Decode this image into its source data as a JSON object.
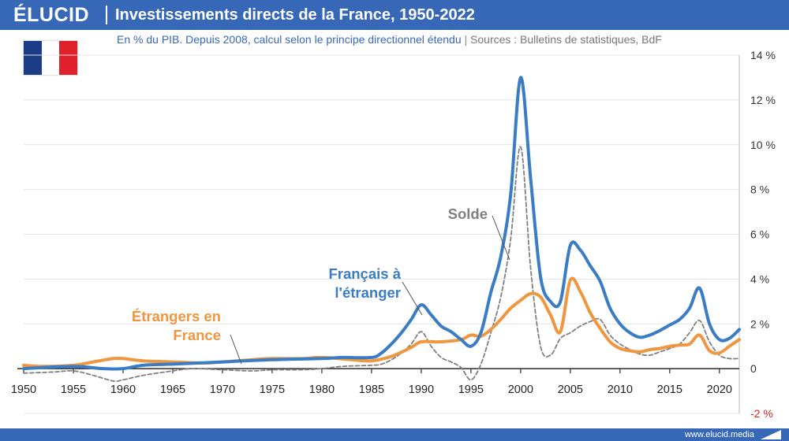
{
  "header": {
    "logo": "ÉLUCID",
    "title": "Investissements directs de la France, 1950-2022"
  },
  "subtitle": {
    "main": "En % du PIB. Depuis 2008, calcul selon le principe directionnel étendu",
    "separator": "|",
    "sources": "Sources : Bulletins de statistiques, BdF"
  },
  "flag": {
    "colors": [
      "#1d3c87",
      "#ffffff",
      "#e0202b"
    ]
  },
  "footer": {
    "text": "www.elucid.media"
  },
  "colors": {
    "brand": "#3768b7",
    "blue": "#3b7dc4",
    "orange": "#ee9640",
    "grey": "#808080",
    "negative": "#e02020"
  },
  "chart_data": {
    "type": "line",
    "title": "Investissements directs de la France, 1950-2022",
    "xlim": [
      1950,
      2022
    ],
    "ylim": [
      -2,
      14
    ],
    "x_ticks": [
      1950,
      1955,
      1960,
      1965,
      1970,
      1975,
      1980,
      1985,
      1990,
      1995,
      2000,
      2005,
      2010,
      2015,
      2020
    ],
    "y_ticks": [
      {
        "value": 14,
        "label": "14 %"
      },
      {
        "value": 12,
        "label": "12 %"
      },
      {
        "value": 10,
        "label": "10 %"
      },
      {
        "value": 8,
        "label": "8 %"
      },
      {
        "value": 6,
        "label": "6 %"
      },
      {
        "value": 4,
        "label": "4 %"
      },
      {
        "value": 2,
        "label": "2 %"
      },
      {
        "value": 0,
        "label": "0"
      },
      {
        "value": -2,
        "label": "-2 %"
      }
    ],
    "y_axis_side": "right",
    "grid": true,
    "series": [
      {
        "name": "Français à l'étranger",
        "style": "solid",
        "label_lines": [
          "Français à",
          "l'étranger"
        ],
        "points": [
          [
            1950,
            0.0
          ],
          [
            1955,
            0.1
          ],
          [
            1958,
            0.0
          ],
          [
            1960,
            0.0
          ],
          [
            1962,
            0.15
          ],
          [
            1965,
            0.2
          ],
          [
            1970,
            0.3
          ],
          [
            1975,
            0.4
          ],
          [
            1980,
            0.45
          ],
          [
            1982,
            0.5
          ],
          [
            1985,
            0.5
          ],
          [
            1986,
            0.7
          ],
          [
            1987,
            1.1
          ],
          [
            1988,
            1.6
          ],
          [
            1989,
            2.2
          ],
          [
            1990,
            2.85
          ],
          [
            1991,
            2.4
          ],
          [
            1992,
            1.9
          ],
          [
            1993,
            1.65
          ],
          [
            1994,
            1.3
          ],
          [
            1995,
            1.0
          ],
          [
            1996,
            1.6
          ],
          [
            1997,
            3.4
          ],
          [
            1998,
            5.0
          ],
          [
            1999,
            7.8
          ],
          [
            2000,
            13.0
          ],
          [
            2001,
            8.5
          ],
          [
            2002,
            4.1
          ],
          [
            2003,
            3.0
          ],
          [
            2004,
            3.0
          ],
          [
            2005,
            5.5
          ],
          [
            2006,
            5.3
          ],
          [
            2007,
            4.6
          ],
          [
            2008,
            3.9
          ],
          [
            2009,
            2.7
          ],
          [
            2010,
            2.0
          ],
          [
            2011,
            1.6
          ],
          [
            2012,
            1.4
          ],
          [
            2013,
            1.5
          ],
          [
            2014,
            1.7
          ],
          [
            2015,
            1.95
          ],
          [
            2016,
            2.2
          ],
          [
            2017,
            2.7
          ],
          [
            2018,
            3.6
          ],
          [
            2019,
            2.0
          ],
          [
            2020,
            1.3
          ],
          [
            2021,
            1.35
          ],
          [
            2022,
            1.75
          ]
        ]
      },
      {
        "name": "Étrangers en France",
        "style": "solid",
        "label_lines": [
          "Étrangers en",
          "France"
        ],
        "points": [
          [
            1950,
            0.15
          ],
          [
            1952,
            0.1
          ],
          [
            1955,
            0.15
          ],
          [
            1957,
            0.3
          ],
          [
            1959,
            0.45
          ],
          [
            1960,
            0.45
          ],
          [
            1962,
            0.35
          ],
          [
            1965,
            0.3
          ],
          [
            1968,
            0.25
          ],
          [
            1970,
            0.3
          ],
          [
            1973,
            0.4
          ],
          [
            1975,
            0.45
          ],
          [
            1978,
            0.45
          ],
          [
            1980,
            0.5
          ],
          [
            1983,
            0.4
          ],
          [
            1985,
            0.35
          ],
          [
            1987,
            0.55
          ],
          [
            1989,
            0.95
          ],
          [
            1990,
            1.2
          ],
          [
            1992,
            1.2
          ],
          [
            1994,
            1.3
          ],
          [
            1995,
            1.5
          ],
          [
            1996,
            1.45
          ],
          [
            1997,
            1.75
          ],
          [
            1998,
            2.2
          ],
          [
            1999,
            2.7
          ],
          [
            2000,
            3.05
          ],
          [
            2001,
            3.35
          ],
          [
            2002,
            3.2
          ],
          [
            2003,
            2.4
          ],
          [
            2004,
            1.65
          ],
          [
            2005,
            3.95
          ],
          [
            2006,
            3.45
          ],
          [
            2007,
            2.5
          ],
          [
            2008,
            1.8
          ],
          [
            2009,
            1.2
          ],
          [
            2010,
            0.9
          ],
          [
            2011,
            0.8
          ],
          [
            2012,
            0.75
          ],
          [
            2013,
            0.85
          ],
          [
            2014,
            0.9
          ],
          [
            2015,
            1.0
          ],
          [
            2016,
            1.05
          ],
          [
            2017,
            1.1
          ],
          [
            2018,
            1.5
          ],
          [
            2019,
            0.8
          ],
          [
            2020,
            0.7
          ],
          [
            2021,
            1.0
          ],
          [
            2022,
            1.3
          ]
        ]
      },
      {
        "name": "Solde",
        "style": "dashed",
        "label_lines": [
          "Solde"
        ],
        "points": [
          [
            1950,
            -0.2
          ],
          [
            1953,
            -0.15
          ],
          [
            1955,
            -0.1
          ],
          [
            1957,
            -0.3
          ],
          [
            1959,
            -0.55
          ],
          [
            1960,
            -0.5
          ],
          [
            1962,
            -0.3
          ],
          [
            1965,
            -0.1
          ],
          [
            1967,
            0.0
          ],
          [
            1970,
            -0.05
          ],
          [
            1973,
            -0.1
          ],
          [
            1975,
            -0.05
          ],
          [
            1978,
            -0.05
          ],
          [
            1980,
            0.0
          ],
          [
            1982,
            0.1
          ],
          [
            1985,
            0.15
          ],
          [
            1986,
            0.2
          ],
          [
            1987,
            0.4
          ],
          [
            1988,
            0.7
          ],
          [
            1989,
            1.1
          ],
          [
            1990,
            1.65
          ],
          [
            1991,
            1.0
          ],
          [
            1992,
            0.5
          ],
          [
            1993,
            0.3
          ],
          [
            1994,
            0.05
          ],
          [
            1995,
            -0.5
          ],
          [
            1996,
            0.2
          ],
          [
            1997,
            1.6
          ],
          [
            1998,
            3.2
          ],
          [
            1999,
            5.8
          ],
          [
            2000,
            9.9
          ],
          [
            2001,
            4.5
          ],
          [
            2002,
            1.0
          ],
          [
            2003,
            0.6
          ],
          [
            2004,
            1.35
          ],
          [
            2005,
            1.6
          ],
          [
            2006,
            1.9
          ],
          [
            2007,
            2.1
          ],
          [
            2008,
            2.2
          ],
          [
            2009,
            1.5
          ],
          [
            2010,
            1.1
          ],
          [
            2011,
            0.85
          ],
          [
            2012,
            0.65
          ],
          [
            2013,
            0.6
          ],
          [
            2014,
            0.75
          ],
          [
            2015,
            0.9
          ],
          [
            2016,
            1.1
          ],
          [
            2017,
            1.6
          ],
          [
            2018,
            2.15
          ],
          [
            2019,
            1.2
          ],
          [
            2020,
            0.6
          ],
          [
            2021,
            0.45
          ],
          [
            2022,
            0.45
          ]
        ]
      }
    ]
  }
}
